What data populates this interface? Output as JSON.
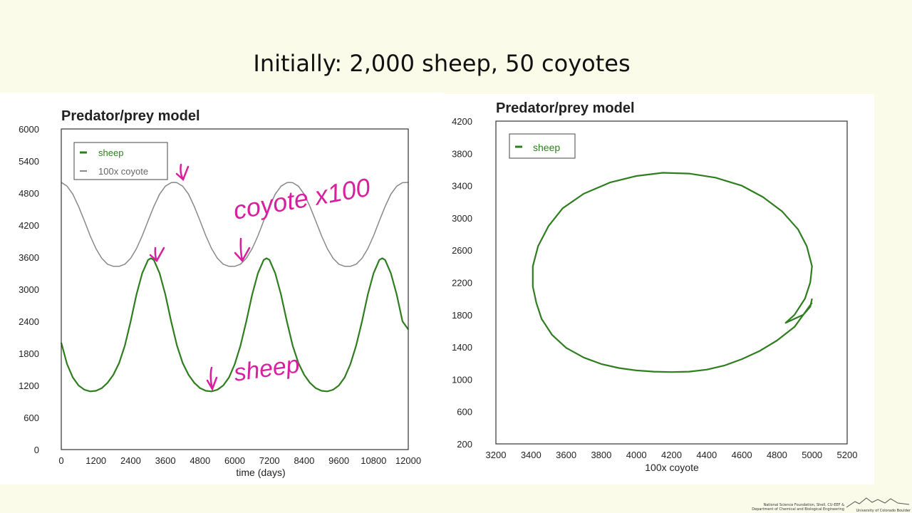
{
  "slide": {
    "title": "Initially:  2,000 sheep,  50 coyotes",
    "footer_line1": "National Science Foundation, Shell, CU-EEF &",
    "footer_line2": "Department of Chemical and Biological Engineering",
    "logo_text": "University of Colorado Boulder"
  },
  "chart_data": [
    {
      "type": "line",
      "title": "Predator/prey model",
      "xlabel": "time (days)",
      "ylabel": "",
      "xlim": [
        0,
        12000
      ],
      "ylim": [
        0,
        6000
      ],
      "xticks": [
        "0",
        "1200",
        "2400",
        "3600",
        "4800",
        "6000",
        "7200",
        "8400",
        "9600",
        "10800",
        "12000"
      ],
      "yticks": [
        "0",
        "600",
        "1200",
        "1800",
        "2400",
        "3000",
        "3600",
        "4200",
        "4800",
        "5400",
        "6000"
      ],
      "legend_position": "top-left",
      "series": [
        {
          "name": "sheep",
          "color": "#2e7d1f",
          "x": [
            0,
            200,
            400,
            600,
            800,
            1000,
            1200,
            1400,
            1600,
            1800,
            2000,
            2200,
            2400,
            2600,
            2800,
            3000,
            3100,
            3200,
            3400,
            3600,
            3800,
            4000,
            4200,
            4400,
            4600,
            4800,
            5000,
            5200,
            5400,
            5600,
            5800,
            6000,
            6200,
            6400,
            6600,
            6800,
            7000,
            7100,
            7200,
            7400,
            7600,
            7800,
            8000,
            8200,
            8400,
            8600,
            8800,
            9000,
            9200,
            9400,
            9600,
            9800,
            10000,
            10200,
            10400,
            10600,
            10800,
            11000,
            11100,
            11200,
            11400,
            11600,
            11800,
            12000
          ],
          "values": [
            2000,
            1600,
            1350,
            1200,
            1120,
            1090,
            1100,
            1150,
            1250,
            1400,
            1620,
            1950,
            2400,
            2900,
            3300,
            3550,
            3580,
            3550,
            3300,
            2900,
            2400,
            1950,
            1620,
            1400,
            1250,
            1150,
            1100,
            1090,
            1120,
            1200,
            1350,
            1600,
            1950,
            2400,
            2900,
            3300,
            3550,
            3580,
            3550,
            3300,
            2900,
            2400,
            1950,
            1620,
            1400,
            1250,
            1150,
            1100,
            1090,
            1120,
            1200,
            1350,
            1600,
            1950,
            2400,
            2900,
            3300,
            3550,
            3580,
            3550,
            3300,
            2900,
            2400,
            2250
          ]
        },
        {
          "name": "100x coyote",
          "color": "#888888",
          "x": [
            0,
            200,
            400,
            600,
            800,
            1000,
            1200,
            1400,
            1600,
            1800,
            2000,
            2200,
            2400,
            2600,
            2800,
            3000,
            3200,
            3400,
            3600,
            3800,
            3900,
            4000,
            4200,
            4400,
            4600,
            4800,
            5000,
            5200,
            5400,
            5600,
            5800,
            6000,
            6200,
            6400,
            6600,
            6800,
            7000,
            7200,
            7400,
            7600,
            7800,
            7900,
            8000,
            8200,
            8400,
            8600,
            8800,
            9000,
            9200,
            9400,
            9600,
            9800,
            10000,
            10200,
            10400,
            10600,
            10800,
            11000,
            11200,
            11400,
            11600,
            11800,
            12000
          ],
          "values": [
            5000,
            4930,
            4780,
            4550,
            4280,
            4000,
            3760,
            3580,
            3470,
            3430,
            3430,
            3470,
            3580,
            3760,
            4000,
            4280,
            4550,
            4780,
            4930,
            4995,
            5000,
            4995,
            4930,
            4780,
            4550,
            4280,
            4000,
            3760,
            3580,
            3470,
            3430,
            3430,
            3470,
            3580,
            3760,
            4000,
            4280,
            4550,
            4780,
            4930,
            4995,
            5000,
            4995,
            4930,
            4780,
            4550,
            4280,
            4000,
            3760,
            3580,
            3470,
            3430,
            3430,
            3470,
            3580,
            3760,
            4000,
            4280,
            4550,
            4780,
            4930,
            4995,
            5000
          ]
        }
      ],
      "annotations": [
        "coyote x100",
        "sheep"
      ]
    },
    {
      "type": "line",
      "title": "Predator/prey model",
      "xlabel": "100x coyote",
      "ylabel": "",
      "xlim": [
        3200,
        5200
      ],
      "ylim": [
        200,
        4200
      ],
      "xticks": [
        "3200",
        "3400",
        "3600",
        "3800",
        "4000",
        "4200",
        "4400",
        "4600",
        "4800",
        "5000",
        "5200"
      ],
      "yticks": [
        "200",
        "600",
        "1000",
        "1400",
        "1800",
        "2200",
        "2600",
        "3000",
        "3400",
        "3800",
        "4200"
      ],
      "legend_position": "top-left",
      "series": [
        {
          "name": "sheep",
          "color": "#2e7d1f",
          "x": [
            5000,
            4990,
            4950,
            4900,
            4800,
            4700,
            4600,
            4500,
            4400,
            4300,
            4200,
            4100,
            4000,
            3900,
            3800,
            3700,
            3600,
            3520,
            3460,
            3430,
            3410,
            3410,
            3440,
            3500,
            3580,
            3700,
            3850,
            4000,
            4150,
            4300,
            4450,
            4600,
            4720,
            4830,
            4920,
            4970,
            5000,
            4990,
            4960,
            4900,
            4850,
            4950,
            5000
          ],
          "values": [
            2000,
            1900,
            1800,
            1650,
            1480,
            1350,
            1250,
            1170,
            1120,
            1095,
            1090,
            1095,
            1110,
            1140,
            1190,
            1270,
            1390,
            1550,
            1750,
            1950,
            2150,
            2400,
            2650,
            2900,
            3120,
            3300,
            3440,
            3520,
            3560,
            3550,
            3500,
            3400,
            3260,
            3080,
            2860,
            2650,
            2400,
            2200,
            2000,
            1800,
            1700,
            1800,
            1950
          ]
        }
      ]
    }
  ]
}
